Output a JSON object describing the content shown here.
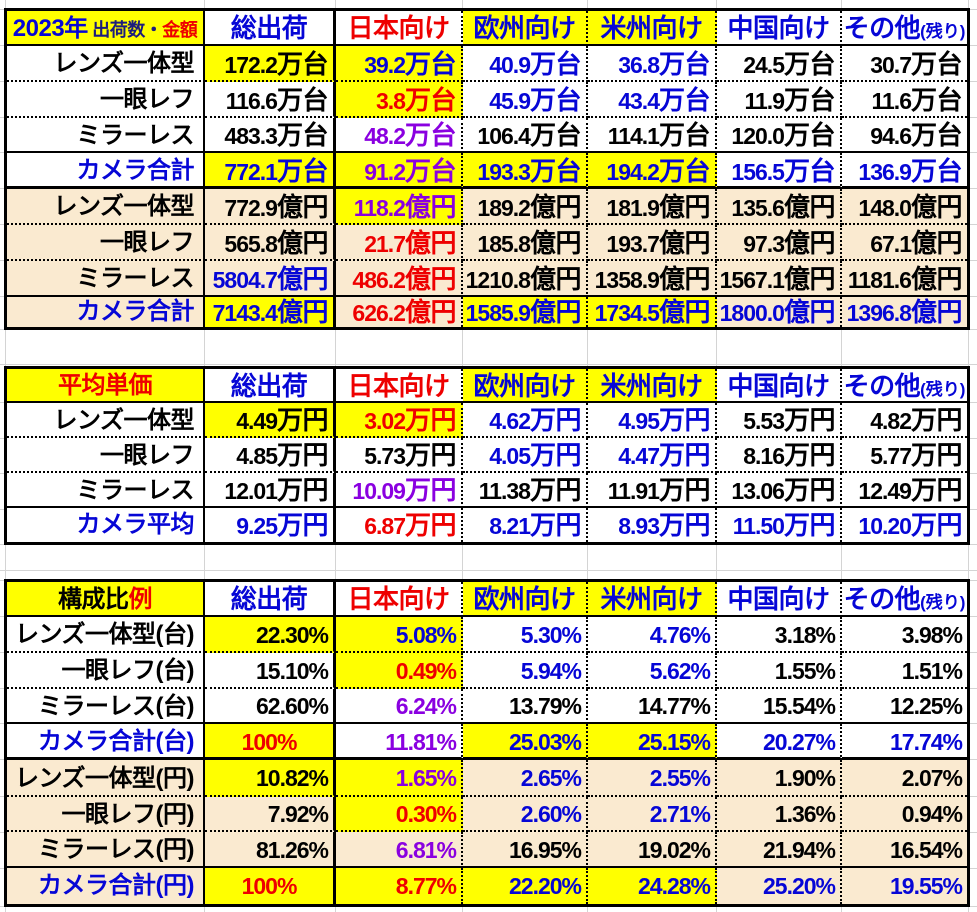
{
  "app": "spreadsheet",
  "colors": {
    "yellow": "#ffff00",
    "cream": "#faead0",
    "blue": "#0606d6",
    "red": "#ee0000",
    "purple": "#8a00e0",
    "navy": "#1c1c7e",
    "black": "#000000",
    "gridline": "#d4d4d4"
  },
  "tables": [
    {
      "key": "shipments",
      "title_segments": [
        {
          "t": "2023年",
          "fg": "b",
          "cls": "t-lg"
        },
        {
          "t": " 出荷数・",
          "fg": "n",
          "cls": "t-sm"
        },
        {
          "t": "金額",
          "fg": "r",
          "cls": "t-sm"
        }
      ],
      "title_bg": "y",
      "headers": [
        {
          "t": "総出荷",
          "fg": "b",
          "bg": "w"
        },
        {
          "t": "日本向け",
          "fg": "r",
          "bg": "w"
        },
        {
          "t": "欧州向け",
          "fg": "b",
          "bg": "y"
        },
        {
          "t": "米州向け",
          "fg": "b",
          "bg": "y"
        },
        {
          "t": "中国向け",
          "fg": "b",
          "bg": "w"
        },
        {
          "t": "その他",
          "suffix": "(残り)",
          "fg": "b",
          "bg": "w"
        }
      ],
      "rows": [
        {
          "label": "レンズ一体型",
          "lfg": "k",
          "lbg": "w",
          "cells": [
            [
              "172.2万台",
              "k",
              "y"
            ],
            [
              "39.2万台",
              "b",
              "y"
            ],
            [
              "40.9万台",
              "b",
              "w"
            ],
            [
              "36.8万台",
              "b",
              "w"
            ],
            [
              "24.5万台",
              "k",
              "w"
            ],
            [
              "30.7万台",
              "k",
              "w"
            ]
          ]
        },
        {
          "label": "一眼レフ",
          "lfg": "k",
          "lbg": "w",
          "cells": [
            [
              "116.6万台",
              "k",
              "w"
            ],
            [
              "3.8万台",
              "r",
              "y"
            ],
            [
              "45.9万台",
              "b",
              "w"
            ],
            [
              "43.4万台",
              "b",
              "w"
            ],
            [
              "11.9万台",
              "k",
              "w"
            ],
            [
              "11.6万台",
              "k",
              "w"
            ]
          ]
        },
        {
          "label": "ミラーレス",
          "lfg": "k",
          "lbg": "w",
          "cells": [
            [
              "483.3万台",
              "k",
              "w"
            ],
            [
              "48.2万台",
              "p",
              "w"
            ],
            [
              "106.4万台",
              "k",
              "w"
            ],
            [
              "114.1万台",
              "k",
              "w"
            ],
            [
              "120.0万台",
              "k",
              "w"
            ],
            [
              "94.6万台",
              "k",
              "w"
            ]
          ]
        },
        {
          "label": "カメラ合計",
          "lfg": "b",
          "lbg": "w",
          "cells": [
            [
              "772.1万台",
              "b",
              "y"
            ],
            [
              "91.2万台",
              "p",
              "y"
            ],
            [
              "193.3万台",
              "b",
              "y"
            ],
            [
              "194.2万台",
              "b",
              "y"
            ],
            [
              "156.5万台",
              "b",
              "w"
            ],
            [
              "136.9万台",
              "b",
              "w"
            ]
          ]
        },
        {
          "label": "レンズ一体型",
          "lfg": "k",
          "lbg": "c",
          "cells": [
            [
              "772.9億円",
              "k",
              "c"
            ],
            [
              "118.2億円",
              "p",
              "y"
            ],
            [
              "189.2億円",
              "k",
              "c"
            ],
            [
              "181.9億円",
              "k",
              "c"
            ],
            [
              "135.6億円",
              "k",
              "c"
            ],
            [
              "148.0億円",
              "k",
              "c"
            ]
          ]
        },
        {
          "label": "一眼レフ",
          "lfg": "k",
          "lbg": "c",
          "cells": [
            [
              "565.8億円",
              "k",
              "c"
            ],
            [
              "21.7億円",
              "r",
              "c"
            ],
            [
              "185.8億円",
              "k",
              "c"
            ],
            [
              "193.7億円",
              "k",
              "c"
            ],
            [
              "97.3億円",
              "k",
              "c"
            ],
            [
              "67.1億円",
              "k",
              "c"
            ]
          ]
        },
        {
          "label": "ミラーレス",
          "lfg": "k",
          "lbg": "c",
          "cells": [
            [
              "5804.7億円",
              "b",
              "c"
            ],
            [
              "486.2億円",
              "r",
              "c"
            ],
            [
              "1210.8億円",
              "k",
              "c"
            ],
            [
              "1358.9億円",
              "k",
              "c"
            ],
            [
              "1567.1億円",
              "k",
              "c"
            ],
            [
              "1181.6億円",
              "k",
              "c"
            ]
          ]
        },
        {
          "label": "カメラ合計",
          "lfg": "b",
          "lbg": "c",
          "cells": [
            [
              "7143.4億円",
              "b",
              "y"
            ],
            [
              "626.2億円",
              "r",
              "c"
            ],
            [
              "1585.9億円",
              "b",
              "y"
            ],
            [
              "1734.5億円",
              "b",
              "y"
            ],
            [
              "1800.0億円",
              "b",
              "c"
            ],
            [
              "1396.8億円",
              "b",
              "c"
            ]
          ]
        }
      ]
    },
    {
      "key": "avg-price",
      "title_segments": [
        {
          "t": "平均単価",
          "fg": "r",
          "cls": "t-lg"
        }
      ],
      "title_bg": "y",
      "headers": [
        {
          "t": "総出荷",
          "fg": "b",
          "bg": "w"
        },
        {
          "t": "日本向け",
          "fg": "r",
          "bg": "w"
        },
        {
          "t": "欧州向け",
          "fg": "b",
          "bg": "y"
        },
        {
          "t": "米州向け",
          "fg": "b",
          "bg": "y"
        },
        {
          "t": "中国向け",
          "fg": "b",
          "bg": "w"
        },
        {
          "t": "その他",
          "suffix": "(残り)",
          "fg": "b",
          "bg": "w"
        }
      ],
      "rows": [
        {
          "label": "レンズ一体型",
          "lfg": "k",
          "lbg": "w",
          "cells": [
            [
              "4.49万円",
              "k",
              "y"
            ],
            [
              "3.02万円",
              "r",
              "y"
            ],
            [
              "4.62万円",
              "b",
              "w"
            ],
            [
              "4.95万円",
              "b",
              "w"
            ],
            [
              "5.53万円",
              "k",
              "w"
            ],
            [
              "4.82万円",
              "k",
              "w"
            ]
          ]
        },
        {
          "label": "一眼レフ",
          "lfg": "k",
          "lbg": "w",
          "cells": [
            [
              "4.85万円",
              "k",
              "w"
            ],
            [
              "5.73万円",
              "k",
              "w"
            ],
            [
              "4.05万円",
              "b",
              "w"
            ],
            [
              "4.47万円",
              "b",
              "w"
            ],
            [
              "8.16万円",
              "k",
              "w"
            ],
            [
              "5.77万円",
              "k",
              "w"
            ]
          ]
        },
        {
          "label": "ミラーレス",
          "lfg": "k",
          "lbg": "w",
          "cells": [
            [
              "12.01万円",
              "k",
              "w"
            ],
            [
              "10.09万円",
              "p",
              "w"
            ],
            [
              "11.38万円",
              "k",
              "w"
            ],
            [
              "11.91万円",
              "k",
              "w"
            ],
            [
              "13.06万円",
              "k",
              "w"
            ],
            [
              "12.49万円",
              "k",
              "w"
            ]
          ]
        },
        {
          "label": "カメラ平均",
          "lfg": "b",
          "lbg": "w",
          "cells": [
            [
              "9.25万円",
              "b",
              "w"
            ],
            [
              "6.87万円",
              "r",
              "w"
            ],
            [
              "8.21万円",
              "b",
              "w"
            ],
            [
              "8.93万円",
              "b",
              "w"
            ],
            [
              "11.50万円",
              "b",
              "w"
            ],
            [
              "10.20万円",
              "b",
              "w"
            ]
          ]
        }
      ]
    },
    {
      "key": "composition",
      "title_segments": [
        {
          "t": "構成比",
          "fg": "k",
          "cls": "t-lg"
        },
        {
          "t": "例",
          "fg": "r",
          "cls": "t-lg"
        }
      ],
      "title_bg": "y",
      "headers": [
        {
          "t": "総出荷",
          "fg": "b",
          "bg": "w"
        },
        {
          "t": "日本向け",
          "fg": "r",
          "bg": "w"
        },
        {
          "t": "欧州向け",
          "fg": "b",
          "bg": "y"
        },
        {
          "t": "米州向け",
          "fg": "b",
          "bg": "y"
        },
        {
          "t": "中国向け",
          "fg": "b",
          "bg": "w"
        },
        {
          "t": "その他",
          "suffix": "(残り)",
          "fg": "b",
          "bg": "w"
        }
      ],
      "rows": [
        {
          "label": "レンズ一体型(台)",
          "lfg": "k",
          "lbg": "w",
          "cells": [
            [
              "22.30%",
              "k",
              "y"
            ],
            [
              "5.08%",
              "b",
              "y"
            ],
            [
              "5.30%",
              "b",
              "w"
            ],
            [
              "4.76%",
              "b",
              "w"
            ],
            [
              "3.18%",
              "k",
              "w"
            ],
            [
              "3.98%",
              "k",
              "w"
            ]
          ]
        },
        {
          "label": "一眼レフ(台)",
          "lfg": "k",
          "lbg": "w",
          "cells": [
            [
              "15.10%",
              "k",
              "w"
            ],
            [
              "0.49%",
              "r",
              "y"
            ],
            [
              "5.94%",
              "b",
              "w"
            ],
            [
              "5.62%",
              "b",
              "w"
            ],
            [
              "1.55%",
              "k",
              "w"
            ],
            [
              "1.51%",
              "k",
              "w"
            ]
          ]
        },
        {
          "label": "ミラーレス(台)",
          "lfg": "k",
          "lbg": "w",
          "cells": [
            [
              "62.60%",
              "k",
              "w"
            ],
            [
              "6.24%",
              "p",
              "w"
            ],
            [
              "13.79%",
              "k",
              "w"
            ],
            [
              "14.77%",
              "k",
              "w"
            ],
            [
              "15.54%",
              "k",
              "w"
            ],
            [
              "12.25%",
              "k",
              "w"
            ]
          ]
        },
        {
          "label": "カメラ合計(台)",
          "lfg": "b",
          "lbg": "w",
          "cells": [
            [
              "100%",
              "r",
              "y",
              "c"
            ],
            [
              "11.81%",
              "p",
              "w"
            ],
            [
              "25.03%",
              "b",
              "y"
            ],
            [
              "25.15%",
              "b",
              "y"
            ],
            [
              "20.27%",
              "b",
              "w"
            ],
            [
              "17.74%",
              "b",
              "w"
            ]
          ]
        },
        {
          "label": "レンズ一体型(円)",
          "lfg": "k",
          "lbg": "c",
          "cells": [
            [
              "10.82%",
              "k",
              "y"
            ],
            [
              "1.65%",
              "p",
              "y"
            ],
            [
              "2.65%",
              "b",
              "c"
            ],
            [
              "2.55%",
              "b",
              "c"
            ],
            [
              "1.90%",
              "k",
              "c"
            ],
            [
              "2.07%",
              "k",
              "c"
            ]
          ]
        },
        {
          "label": "一眼レフ(円)",
          "lfg": "k",
          "lbg": "c",
          "cells": [
            [
              "7.92%",
              "k",
              "c"
            ],
            [
              "0.30%",
              "r",
              "y"
            ],
            [
              "2.60%",
              "b",
              "c"
            ],
            [
              "2.71%",
              "b",
              "c"
            ],
            [
              "1.36%",
              "k",
              "c"
            ],
            [
              "0.94%",
              "k",
              "c"
            ]
          ]
        },
        {
          "label": "ミラーレス(円)",
          "lfg": "k",
          "lbg": "c",
          "cells": [
            [
              "81.26%",
              "k",
              "c"
            ],
            [
              "6.81%",
              "p",
              "c"
            ],
            [
              "16.95%",
              "k",
              "c"
            ],
            [
              "19.02%",
              "k",
              "c"
            ],
            [
              "21.94%",
              "k",
              "c"
            ],
            [
              "16.54%",
              "k",
              "c"
            ]
          ]
        },
        {
          "label": "カメラ合計(円)",
          "lfg": "b",
          "lbg": "c",
          "cells": [
            [
              "100%",
              "r",
              "y",
              "c"
            ],
            [
              "8.77%",
              "r",
              "y"
            ],
            [
              "22.20%",
              "b",
              "y"
            ],
            [
              "24.28%",
              "b",
              "y"
            ],
            [
              "25.20%",
              "b",
              "c"
            ],
            [
              "19.55%",
              "b",
              "c"
            ]
          ]
        }
      ]
    }
  ]
}
